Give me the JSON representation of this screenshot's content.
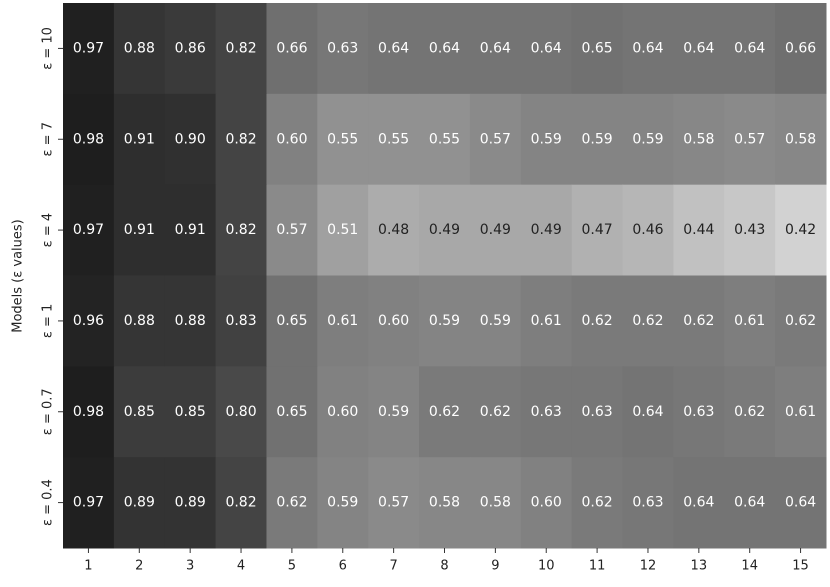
{
  "chart_data": {
    "type": "heatmap",
    "ylabel": "Models (ε values)",
    "x": [
      1,
      2,
      3,
      4,
      5,
      6,
      7,
      8,
      9,
      10,
      11,
      12,
      13,
      14,
      15
    ],
    "y": [
      "ε = 10",
      "ε = 7",
      "ε = 4",
      "ε = 1",
      "ε = 0.7",
      "ε = 0.4"
    ],
    "values": [
      [
        0.97,
        0.88,
        0.86,
        0.82,
        0.66,
        0.63,
        0.64,
        0.64,
        0.64,
        0.64,
        0.65,
        0.64,
        0.64,
        0.64,
        0.66
      ],
      [
        0.98,
        0.91,
        0.9,
        0.82,
        0.6,
        0.55,
        0.55,
        0.55,
        0.57,
        0.59,
        0.59,
        0.59,
        0.58,
        0.57,
        0.58
      ],
      [
        0.97,
        0.91,
        0.91,
        0.82,
        0.57,
        0.51,
        0.48,
        0.49,
        0.49,
        0.49,
        0.47,
        0.46,
        0.44,
        0.43,
        0.42
      ],
      [
        0.96,
        0.88,
        0.88,
        0.83,
        0.65,
        0.61,
        0.6,
        0.59,
        0.59,
        0.61,
        0.62,
        0.62,
        0.62,
        0.61,
        0.62
      ],
      [
        0.98,
        0.85,
        0.85,
        0.8,
        0.65,
        0.6,
        0.59,
        0.62,
        0.62,
        0.63,
        0.63,
        0.64,
        0.63,
        0.62,
        0.61
      ],
      [
        0.97,
        0.89,
        0.89,
        0.82,
        0.62,
        0.59,
        0.57,
        0.58,
        0.58,
        0.6,
        0.62,
        0.63,
        0.64,
        0.64,
        0.64
      ]
    ],
    "value_labels": [
      [
        "0.97",
        "0.88",
        "0.86",
        "0.82",
        "0.66",
        "0.63",
        "0.64",
        "0.64",
        "0.64",
        "0.64",
        "0.65",
        "0.64",
        "0.64",
        "0.64",
        "0.66"
      ],
      [
        "0.98",
        "0.91",
        "0.90",
        "0.82",
        "0.60",
        "0.55",
        "0.55",
        "0.55",
        "0.57",
        "0.59",
        "0.59",
        "0.59",
        "0.58",
        "0.57",
        "0.58"
      ],
      [
        "0.97",
        "0.91",
        "0.91",
        "0.82",
        "0.57",
        "0.51",
        "0.48",
        "0.49",
        "0.49",
        "0.49",
        "0.47",
        "0.46",
        "0.44",
        "0.43",
        "0.42"
      ],
      [
        "0.96",
        "0.88",
        "0.88",
        "0.83",
        "0.65",
        "0.61",
        "0.60",
        "0.59",
        "0.59",
        "0.61",
        "0.62",
        "0.62",
        "0.62",
        "0.61",
        "0.62"
      ],
      [
        "0.98",
        "0.85",
        "0.85",
        "0.80",
        "0.65",
        "0.60",
        "0.59",
        "0.62",
        "0.62",
        "0.63",
        "0.63",
        "0.64",
        "0.63",
        "0.62",
        "0.61"
      ],
      [
        "0.97",
        "0.89",
        "0.89",
        "0.82",
        "0.62",
        "0.59",
        "0.57",
        "0.58",
        "0.58",
        "0.60",
        "0.62",
        "0.63",
        "0.64",
        "0.64",
        "0.64"
      ]
    ]
  }
}
